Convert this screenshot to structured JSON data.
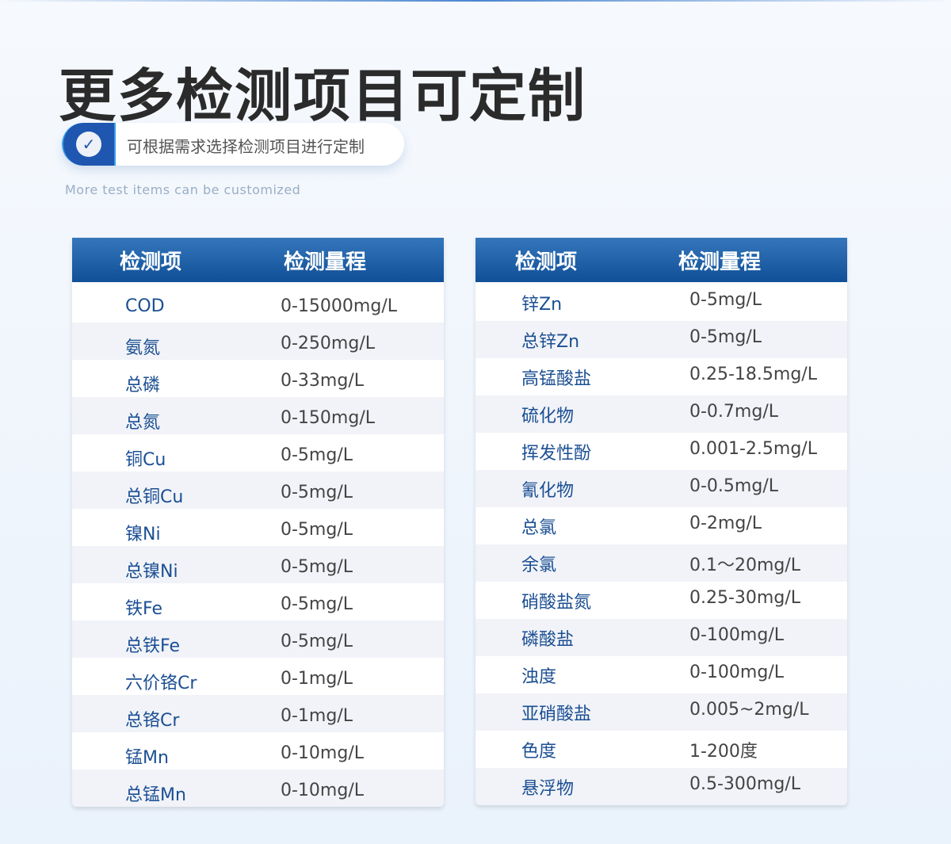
{
  "title": "更多检测项目可定制",
  "subtitle": "可根据需求选择检测项目进行定制",
  "english": "More test items can be customized",
  "colors": {
    "header": "#1e5ba6",
    "item": "#1b4f93"
  },
  "icon": "check-circle-icon",
  "headers": {
    "item": "检测项",
    "range": "检测量程"
  },
  "left": [
    {
      "n": "COD",
      "v": "0-15000mg/L"
    },
    {
      "n": "氨氮",
      "v": "0-250mg/L"
    },
    {
      "n": "总磷",
      "v": "0-33mg/L"
    },
    {
      "n": "总氮",
      "v": "0-150mg/L"
    },
    {
      "n": "铜Cu",
      "v": "0-5mg/L"
    },
    {
      "n": "总铜Cu",
      "v": "0-5mg/L"
    },
    {
      "n": "镍Ni",
      "v": "0-5mg/L"
    },
    {
      "n": "总镍Ni",
      "v": "0-5mg/L"
    },
    {
      "n": "铁Fe",
      "v": "0-5mg/L"
    },
    {
      "n": "总铁Fe",
      "v": "0-5mg/L"
    },
    {
      "n": "六价铬Cr",
      "v": "0-1mg/L"
    },
    {
      "n": "总铬Cr",
      "v": "0-1mg/L"
    },
    {
      "n": "锰Mn",
      "v": "0-10mg/L"
    },
    {
      "n": "总锰Mn",
      "v": "0-10mg/L"
    }
  ],
  "right": [
    {
      "n": "锌Zn",
      "v": "0-5mg/L"
    },
    {
      "n": "总锌Zn",
      "v": "0-5mg/L"
    },
    {
      "n": "高锰酸盐",
      "v": "0.25-18.5mg/L"
    },
    {
      "n": "硫化物",
      "v": "0-0.7mg/L"
    },
    {
      "n": "挥发性酚",
      "v": "0.001-2.5mg/L"
    },
    {
      "n": "氰化物",
      "v": "0-0.5mg/L"
    },
    {
      "n": "总氯",
      "v": "0-2mg/L"
    },
    {
      "n": "余氯",
      "v": "0.1～20mg/L"
    },
    {
      "n": "硝酸盐氮",
      "v": "0.25-30mg/L"
    },
    {
      "n": "磷酸盐",
      "v": "0-100mg/L"
    },
    {
      "n": "浊度",
      "v": "0-100mg/L"
    },
    {
      "n": "亚硝酸盐",
      "v": "0.005~2mg/L"
    },
    {
      "n": "色度",
      "v": "1-200度"
    },
    {
      "n": "悬浮物",
      "v": "0.5-300mg/L"
    }
  ]
}
